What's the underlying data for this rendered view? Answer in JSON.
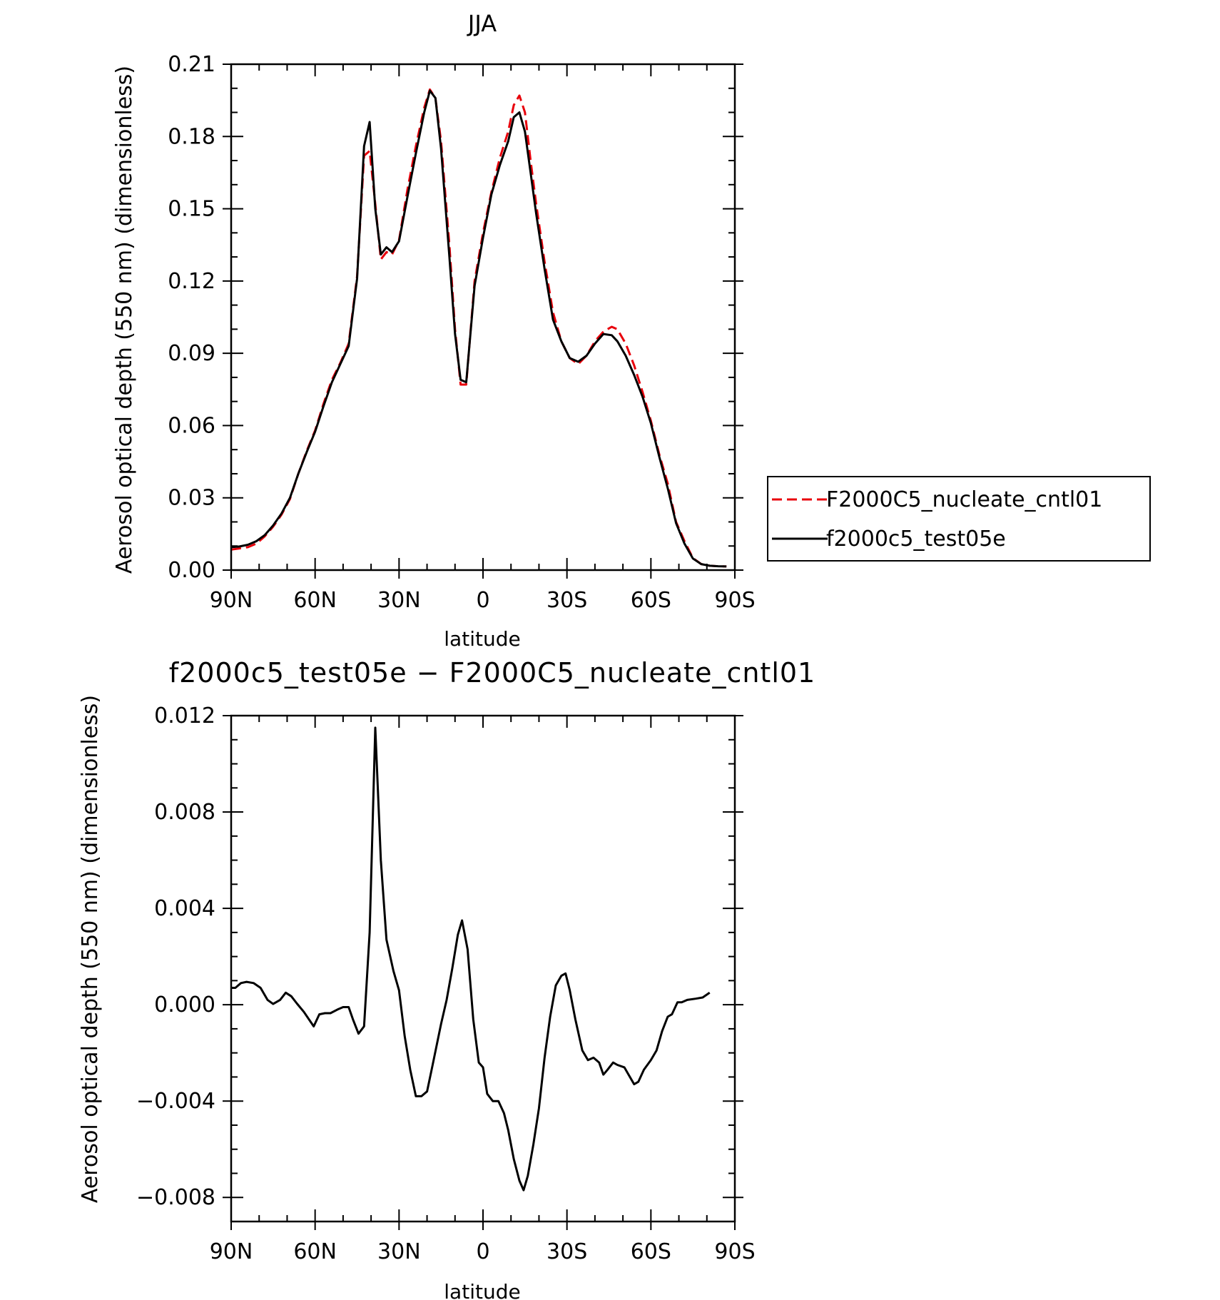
{
  "chart_data": [
    {
      "type": "line",
      "title": "JJA",
      "xlabel": "latitude",
      "ylabel": "Aerosol optical depth (550 nm) (dimensionless)",
      "x_ticks": [
        90,
        60,
        30,
        0,
        -30,
        -60,
        -90
      ],
      "x_tick_labels": [
        "90N",
        "60N",
        "30N",
        "0",
        "30S",
        "60S",
        "90S"
      ],
      "xlim": [
        90,
        -90
      ],
      "y_ticks": [
        0,
        0.03,
        0.06,
        0.09,
        0.12,
        0.15,
        0.18,
        0.21
      ],
      "y_tick_labels": [
        "0.00",
        "0.03",
        "0.06",
        "0.09",
        "0.12",
        "0.15",
        "0.18",
        "0.21"
      ],
      "ylim": [
        0,
        0.21
      ],
      "legend": "right",
      "series": [
        {
          "name": "F2000C5_nucleate_cntl01",
          "color": "#e8000b",
          "style": "dashed",
          "points": [
            [
              90,
              0.0085
            ],
            [
              87,
              0.009
            ],
            [
              84,
              0.0095
            ],
            [
              81,
              0.011
            ],
            [
              78,
              0.014
            ],
            [
              75,
              0.018
            ],
            [
              72,
              0.023
            ],
            [
              69,
              0.0295
            ],
            [
              66,
              0.04
            ],
            [
              63,
              0.0495
            ],
            [
              60,
              0.058
            ],
            [
              57,
              0.069
            ],
            [
              54,
              0.079
            ],
            [
              51,
              0.086
            ],
            [
              48,
              0.094
            ],
            [
              45,
              0.122
            ],
            [
              42.5,
              0.172
            ],
            [
              40.5,
              0.174
            ],
            [
              38.5,
              0.152
            ],
            [
              36.5,
              0.129
            ],
            [
              34.5,
              0.132
            ],
            [
              32.5,
              0.131
            ],
            [
              30,
              0.137
            ],
            [
              27,
              0.158
            ],
            [
              24,
              0.176
            ],
            [
              21,
              0.192
            ],
            [
              19,
              0.1995
            ],
            [
              17,
              0.196
            ],
            [
              15,
              0.178
            ],
            [
              12,
              0.135
            ],
            [
              10,
              0.1
            ],
            [
              8,
              0.077
            ],
            [
              6,
              0.077
            ],
            [
              3,
              0.12
            ],
            [
              0,
              0.14
            ],
            [
              -3,
              0.157
            ],
            [
              -6,
              0.171
            ],
            [
              -9,
              0.182
            ],
            [
              -11,
              0.193
            ],
            [
              -13,
              0.197
            ],
            [
              -15,
              0.19
            ],
            [
              -17,
              0.17
            ],
            [
              -19,
              0.152
            ],
            [
              -22,
              0.128
            ],
            [
              -25,
              0.107
            ],
            [
              -28,
              0.095
            ],
            [
              -31,
              0.088
            ],
            [
              -34,
              0.0855
            ],
            [
              -37,
              0.089
            ],
            [
              -40,
              0.095
            ],
            [
              -43,
              0.099
            ],
            [
              -46,
              0.101
            ],
            [
              -48,
              0.1
            ],
            [
              -51,
              0.094
            ],
            [
              -54,
              0.085
            ],
            [
              -57,
              0.074
            ],
            [
              -60,
              0.062
            ],
            [
              -63,
              0.048
            ],
            [
              -66,
              0.036
            ],
            [
              -69,
              0.02
            ],
            [
              -72,
              0.012
            ],
            [
              -75,
              0.005
            ],
            [
              -78,
              0.0025
            ],
            [
              -81,
              0.0018
            ],
            [
              -84,
              0.0016
            ],
            [
              -87,
              0.0015
            ]
          ]
        },
        {
          "name": "f2000c5_test05e",
          "color": "#000000",
          "style": "solid",
          "points": [
            [
              90,
              0.0095
            ],
            [
              87,
              0.0098
            ],
            [
              84,
              0.0105
            ],
            [
              81,
              0.012
            ],
            [
              78,
              0.0145
            ],
            [
              75,
              0.0185
            ],
            [
              72,
              0.0235
            ],
            [
              69,
              0.03
            ],
            [
              66,
              0.04
            ],
            [
              63,
              0.049
            ],
            [
              60,
              0.0575
            ],
            [
              57,
              0.068
            ],
            [
              54,
              0.078
            ],
            [
              51,
              0.0855
            ],
            [
              48,
              0.093
            ],
            [
              45,
              0.121
            ],
            [
              42.5,
              0.176
            ],
            [
              40.5,
              0.186
            ],
            [
              38.5,
              0.15
            ],
            [
              36.5,
              0.131
            ],
            [
              34.5,
              0.134
            ],
            [
              32.5,
              0.132
            ],
            [
              30,
              0.1365
            ],
            [
              27,
              0.155
            ],
            [
              24,
              0.173
            ],
            [
              21,
              0.19
            ],
            [
              19,
              0.199
            ],
            [
              17,
              0.196
            ],
            [
              15,
              0.175
            ],
            [
              12,
              0.13
            ],
            [
              10,
              0.098
            ],
            [
              8,
              0.079
            ],
            [
              6,
              0.078
            ],
            [
              3,
              0.118
            ],
            [
              0,
              0.138
            ],
            [
              -3,
              0.156
            ],
            [
              -6,
              0.168
            ],
            [
              -9,
              0.178
            ],
            [
              -11,
              0.188
            ],
            [
              -13,
              0.19
            ],
            [
              -15,
              0.182
            ],
            [
              -17,
              0.165
            ],
            [
              -19,
              0.148
            ],
            [
              -22,
              0.125
            ],
            [
              -25,
              0.104
            ],
            [
              -28,
              0.095
            ],
            [
              -31,
              0.088
            ],
            [
              -34,
              0.0865
            ],
            [
              -37,
              0.089
            ],
            [
              -40,
              0.094
            ],
            [
              -43,
              0.098
            ],
            [
              -46,
              0.0975
            ],
            [
              -48,
              0.095
            ],
            [
              -51,
              0.089
            ],
            [
              -54,
              0.081
            ],
            [
              -57,
              0.072
            ],
            [
              -60,
              0.061
            ],
            [
              -63,
              0.047
            ],
            [
              -66,
              0.034
            ],
            [
              -69,
              0.0195
            ],
            [
              -72,
              0.011
            ],
            [
              -75,
              0.0048
            ],
            [
              -78,
              0.0025
            ],
            [
              -81,
              0.0018
            ],
            [
              -84,
              0.0016
            ],
            [
              -87,
              0.0015
            ]
          ]
        }
      ]
    },
    {
      "type": "line",
      "title": "f2000c5_test05e − F2000C5_nucleate_cntl01",
      "xlabel": "latitude",
      "ylabel": "Aerosol optical depth (550 nm) (dimensionless)",
      "x_ticks": [
        90,
        60,
        30,
        0,
        -30,
        -60,
        -90
      ],
      "x_tick_labels": [
        "90N",
        "60N",
        "30N",
        "0",
        "30S",
        "60S",
        "90S"
      ],
      "xlim": [
        90,
        -90
      ],
      "y_ticks": [
        -0.008,
        -0.004,
        0,
        0.004,
        0.008,
        0.012
      ],
      "y_tick_labels": [
        "−0.008",
        "−0.004",
        "0.000",
        "0.004",
        "0.008",
        "0.012"
      ],
      "ylim": [
        -0.009,
        0.012
      ],
      "series": [
        {
          "color": "#000000",
          "style": "solid",
          "points": [
            [
              90,
              0.0007
            ],
            [
              88.5,
              0.0007
            ],
            [
              86.5,
              0.0009
            ],
            [
              84.5,
              0.00095
            ],
            [
              82,
              0.0009
            ],
            [
              79.5,
              0.0007
            ],
            [
              77,
              0.0002
            ],
            [
              75,
              3e-05
            ],
            [
              72.5,
              0.0002
            ],
            [
              70.5,
              0.0005
            ],
            [
              68.5,
              0.00035
            ],
            [
              66.5,
              5e-05
            ],
            [
              64,
              -0.0003
            ],
            [
              60.5,
              -0.0009
            ],
            [
              58.5,
              -0.0004
            ],
            [
              56.5,
              -0.00035
            ],
            [
              54.5,
              -0.00035
            ],
            [
              52,
              -0.0002
            ],
            [
              50,
              -0.0001
            ],
            [
              48,
              -0.0001
            ],
            [
              46.5,
              -0.0006
            ],
            [
              44.5,
              -0.0012
            ],
            [
              42.5,
              -0.0009
            ],
            [
              40.5,
              0.003
            ],
            [
              38.5,
              0.0115
            ],
            [
              36.5,
              0.006
            ],
            [
              34.5,
              0.0027
            ],
            [
              32,
              0.0014
            ],
            [
              30,
              0.0006
            ],
            [
              28,
              -0.0013
            ],
            [
              26,
              -0.0027
            ],
            [
              24,
              -0.0038
            ],
            [
              22,
              -0.0038
            ],
            [
              20,
              -0.0036
            ],
            [
              18,
              -0.0025
            ],
            [
              15,
              -0.0008
            ],
            [
              13,
              0.0002
            ],
            [
              11,
              0.0015
            ],
            [
              9,
              0.0029
            ],
            [
              7.5,
              0.0035
            ],
            [
              5.5,
              0.0023
            ],
            [
              3.5,
              -0.0006
            ],
            [
              1.5,
              -0.0024
            ],
            [
              0,
              -0.0026
            ],
            [
              -1.5,
              -0.0037
            ],
            [
              -3.5,
              -0.004
            ],
            [
              -5.5,
              -0.004
            ],
            [
              -7.5,
              -0.0045
            ],
            [
              -9,
              -0.0052
            ],
            [
              -11,
              -0.0064
            ],
            [
              -13,
              -0.0073
            ],
            [
              -14.5,
              -0.0077
            ],
            [
              -16,
              -0.0071
            ],
            [
              -18,
              -0.0058
            ],
            [
              -20,
              -0.0043
            ],
            [
              -22,
              -0.0022
            ],
            [
              -24,
              -0.0005
            ],
            [
              -26,
              0.0008
            ],
            [
              -28,
              0.0012
            ],
            [
              -29.5,
              0.0013
            ],
            [
              -31,
              0.0006
            ],
            [
              -33,
              -0.0006
            ],
            [
              -35.5,
              -0.0019
            ],
            [
              -37.5,
              -0.0023
            ],
            [
              -39.5,
              -0.0022
            ],
            [
              -41.5,
              -0.0024
            ],
            [
              -43,
              -0.0029
            ],
            [
              -44.5,
              -0.0027
            ],
            [
              -46.5,
              -0.0024
            ],
            [
              -48,
              -0.0025
            ],
            [
              -50.5,
              -0.0026
            ],
            [
              -52,
              -0.0029
            ],
            [
              -54,
              -0.0033
            ],
            [
              -55.5,
              -0.0032
            ],
            [
              -57.5,
              -0.0027
            ],
            [
              -60,
              -0.0023
            ],
            [
              -62,
              -0.0019
            ],
            [
              -64,
              -0.0011
            ],
            [
              -66,
              -0.0005
            ],
            [
              -67.5,
              -0.0004
            ],
            [
              -69.5,
              0.0001
            ],
            [
              -71,
              0.0001
            ],
            [
              -73,
              0.0002
            ],
            [
              -76,
              0.00025
            ],
            [
              -78.5,
              0.0003
            ],
            [
              -81,
              0.0005
            ]
          ]
        }
      ]
    }
  ]
}
